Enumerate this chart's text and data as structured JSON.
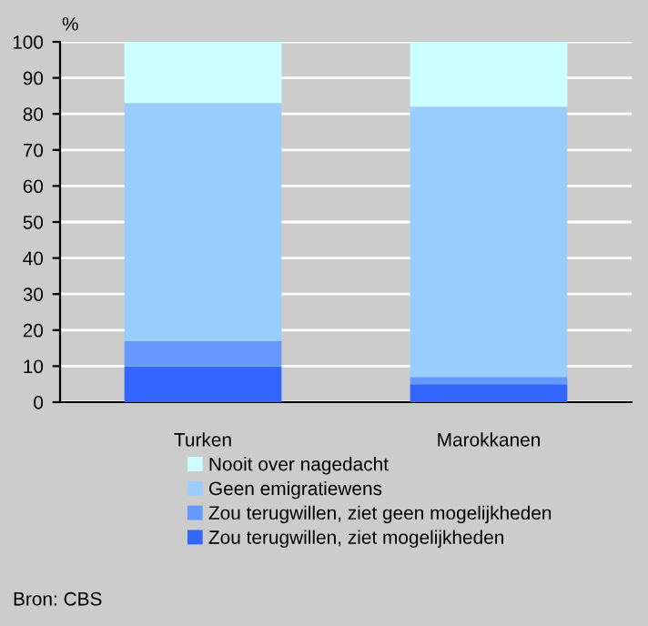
{
  "chart_data": {
    "type": "bar",
    "stacked": true,
    "ylabel": "%",
    "categories": [
      "Turken",
      "Marokkanen"
    ],
    "series": [
      {
        "name": "Zou terugwillen, ziet mogelijkheden",
        "color": "#3366ff",
        "values": [
          10,
          5
        ]
      },
      {
        "name": "Zou terugwillen, ziet geen mogelijkheden",
        "color": "#6699ff",
        "values": [
          7,
          2
        ]
      },
      {
        "name": "Geen emigratiewens",
        "color": "#99ccff",
        "values": [
          66,
          75
        ]
      },
      {
        "name": "Nooit over nagedacht",
        "color": "#ccffff",
        "values": [
          17,
          18
        ]
      }
    ],
    "ylim": [
      0,
      100
    ],
    "yticks": [
      0,
      10,
      20,
      30,
      40,
      50,
      60,
      70,
      80,
      90,
      100
    ],
    "grid": "y",
    "legend": "bottom",
    "annotations": [
      "Bron: CBS"
    ]
  }
}
